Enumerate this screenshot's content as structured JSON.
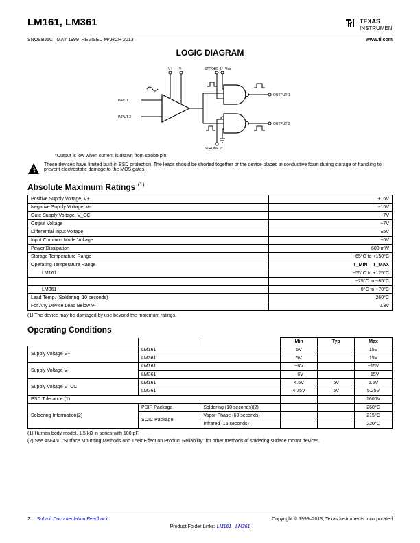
{
  "header": {
    "title": "LM161, LM361",
    "doc_code": "SNOSBJ5C –MAY 1999–REVISED MARCH 2013",
    "site": "www.ti.com",
    "logo_top": "TEXAS",
    "logo_bottom": "INSTRUMENTS"
  },
  "diagram": {
    "title": "LOGIC DIAGRAM",
    "vplus": "V+",
    "vminus": "V-",
    "input1": "INPUT 1",
    "input2": "INPUT 2",
    "strobe1": "STROBE 1*",
    "strobe2": "STROBE 2*",
    "vcc": "Vcc",
    "output1": "OUTPUT 1",
    "output2": "OUTPUT 2",
    "note": "*Output is low when current is drawn from strobe pin."
  },
  "esd_note": "These devices have limited built-in ESD protection. The leads should be shorted together or the device placed in conductive foam during storage or handling to prevent electrostatic damage to the MOS gates.",
  "abs_max": {
    "title": "Absolute Maximum Ratings",
    "super": "(1)",
    "rows": [
      {
        "p": "Positive Supply Voltage, V+",
        "v": "+16V"
      },
      {
        "p": "Negative Supply Voltage, V-",
        "v": "−16V"
      },
      {
        "p": "Gate Supply Voltage, V_CC",
        "v": "+7V"
      },
      {
        "p": "Output Voltage",
        "v": "+7V"
      },
      {
        "p": "Differential Input Voltage",
        "v": "±5V"
      },
      {
        "p": "Input Common Mode Voltage",
        "v": "±6V"
      },
      {
        "p": "Power Dissipation",
        "v": "600 mW"
      },
      {
        "p": "Storage Temperature Range",
        "v": "−65°C to +150°C"
      }
    ],
    "op_temp": {
      "label": "Operating Temperature Range",
      "tmin": "T_MIN",
      "tmax": "T_MAX"
    },
    "lm161_row": {
      "label": "LM161",
      "v": "−55°C to +125°C"
    },
    "lm161_extra": {
      "v": "−25°C to +85°C"
    },
    "lm361_row": {
      "label": "LM361",
      "v": "0°C to +70°C"
    },
    "lead_temp": {
      "label": "Lead Temp. (Soldering, 10 seconds)",
      "v": "260°C"
    },
    "any_below": {
      "label": "For Any Device Lead Below V-",
      "v": "0.3V"
    },
    "footnote": "(1)   The device may be damaged by use beyond the maximum ratings."
  },
  "op_cond": {
    "title": "Operating Conditions",
    "cols": {
      "min": "Min",
      "typ": "Typ",
      "max": "Max"
    },
    "rows": [
      {
        "p": "Supply Voltage V+",
        "sub": "LM161",
        "min": "5V",
        "typ": "",
        "max": "15V"
      },
      {
        "p": "",
        "sub": "LM361",
        "min": "5V",
        "typ": "",
        "max": "15V"
      },
      {
        "p": "Supply Voltage V-",
        "sub": "LM161",
        "min": "−6V",
        "typ": "",
        "max": "−15V"
      },
      {
        "p": "",
        "sub": "LM361",
        "min": "−6V",
        "typ": "",
        "max": "−15V"
      },
      {
        "p": "Supply Voltage V_CC",
        "sub": "LM161",
        "min": "4.5V",
        "typ": "5V",
        "max": "5.5V"
      },
      {
        "p": "",
        "sub": "LM361",
        "min": "4.75V",
        "typ": "5V",
        "max": "5.25V"
      }
    ],
    "esd_tol": {
      "label": "ESD Tolerance (1)",
      "max": "1600V"
    },
    "sold": {
      "label": "Soldering Information(2)",
      "r1": {
        "pkg": "PDIP Package",
        "cond": "Soldering (10 seconds)(2)",
        "max": "260°C"
      },
      "r2": {
        "pkg": "SOIC Package",
        "cond": "Vapor Phase (60 seconds)",
        "max": "215°C"
      },
      "r3": {
        "cond": "Infrared (15 seconds)",
        "max": "220°C"
      }
    },
    "note1": "(1)   Human body model, 1.5 kΩ in series with 100 pF.",
    "note2": "(2)   See AN-450 \"Surface Mounting Methods and Their Effect on Product Reliability\" for other methods of soldering surface mount devices."
  },
  "footer": {
    "page": "2",
    "feedback": "Submit Documentation Feedback",
    "copyright": "Copyright © 1999–2013, Texas Instruments Incorporated",
    "links_label": "Product Folder Links:",
    "link1": "LM161",
    "link2": "LM361"
  }
}
